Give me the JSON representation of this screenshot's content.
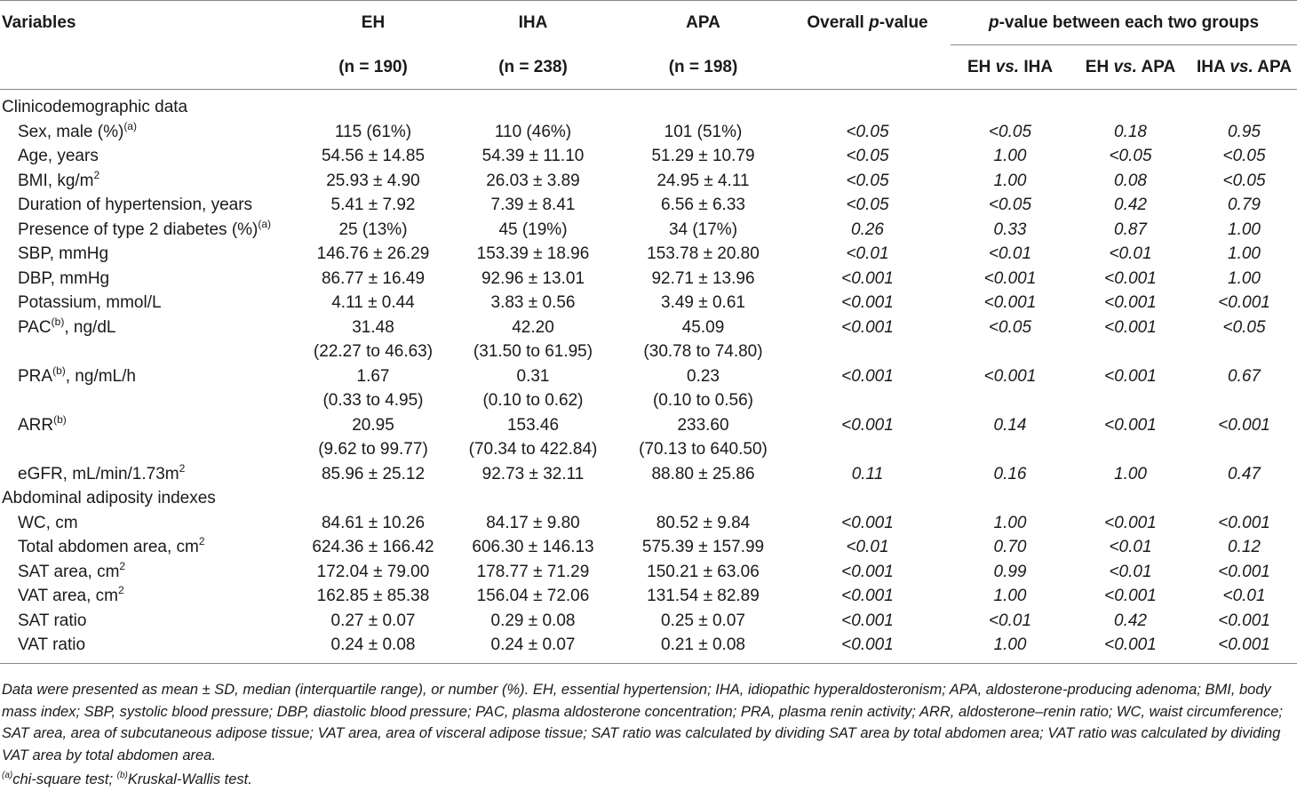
{
  "header": {
    "variables": "Variables",
    "eh": "EH",
    "iha": "IHA",
    "apa": "APA",
    "eh_n": "(n = 190)",
    "iha_n": "(n = 238)",
    "apa_n": "(n = 198)",
    "overall_p_pre": "Overall ",
    "overall_p_italic": "p",
    "overall_p_post": "-value",
    "pairwise_italic": "p",
    "pairwise_post": "-value between each two groups",
    "eh_vs_iha_a": "EH ",
    "vs": "vs.",
    "eh_vs_iha_b": " IHA",
    "eh_vs_apa_a": "EH ",
    "eh_vs_apa_b": " APA",
    "iha_vs_apa_a": "IHA ",
    "iha_vs_apa_b": " APA"
  },
  "sections": {
    "clinical": "Clinicodemographic data",
    "adiposity": "Abdominal adiposity indexes"
  },
  "rows": [
    {
      "label": "Sex, male (%)",
      "sup": "(a)",
      "eh": "115 (61%)",
      "iha": "110 (46%)",
      "apa": "101 (51%)",
      "p": "<0.05",
      "p1": "<0.05",
      "p2": "0.18",
      "p3": "0.95"
    },
    {
      "label": "Age, years",
      "sup": "",
      "eh": "54.56 ± 14.85",
      "iha": "54.39 ± 11.10",
      "apa": "51.29 ± 10.79",
      "p": "<0.05",
      "p1": "1.00",
      "p2": "<0.05",
      "p3": "<0.05"
    },
    {
      "label": "BMI, kg/m",
      "sup": "2",
      "eh": "25.93 ± 4.90",
      "iha": "26.03 ± 3.89",
      "apa": "24.95 ± 4.11",
      "p": "<0.05",
      "p1": "1.00",
      "p2": "0.08",
      "p3": "<0.05"
    },
    {
      "label": "Duration of hypertension, years",
      "sup": "",
      "eh": "5.41 ± 7.92",
      "iha": "7.39 ± 8.41",
      "apa": "6.56 ± 6.33",
      "p": "<0.05",
      "p1": "<0.05",
      "p2": "0.42",
      "p3": "0.79"
    },
    {
      "label": "Presence of type 2 diabetes (%)",
      "sup": "(a)",
      "eh": "25 (13%)",
      "iha": "45 (19%)",
      "apa": "34 (17%)",
      "p": "0.26",
      "p1": "0.33",
      "p2": "0.87",
      "p3": "1.00"
    },
    {
      "label": "SBP, mmHg",
      "sup": "",
      "eh": "146.76 ± 26.29",
      "iha": "153.39 ± 18.96",
      "apa": "153.78 ± 20.80",
      "p": "<0.01",
      "p1": "<0.01",
      "p2": "<0.01",
      "p3": "1.00"
    },
    {
      "label": "DBP, mmHg",
      "sup": "",
      "eh": "86.77 ± 16.49",
      "iha": "92.96 ± 13.01",
      "apa": "92.71 ± 13.96",
      "p": "<0.001",
      "p1": "<0.001",
      "p2": "<0.001",
      "p3": "1.00"
    },
    {
      "label": "Potassium, mmol/L",
      "sup": "",
      "eh": "4.11 ± 0.44",
      "iha": "3.83 ± 0.56",
      "apa": "3.49 ± 0.61",
      "p": "<0.001",
      "p1": "<0.001",
      "p2": "<0.001",
      "p3": "<0.001"
    },
    {
      "label": "PAC",
      "sup": "(b)",
      "post": ", ng/dL",
      "eh": "31.48",
      "iha": "42.20",
      "apa": "45.09",
      "p": "<0.001",
      "p1": "<0.05",
      "p2": "<0.001",
      "p3": "<0.05",
      "eh2": "(22.27 to 46.63)",
      "iha2": "(31.50 to 61.95)",
      "apa2": "(30.78 to 74.80)"
    },
    {
      "label": "PRA",
      "sup": "(b)",
      "post": ", ng/mL/h",
      "eh": "1.67",
      "iha": "0.31",
      "apa": "0.23",
      "p": "<0.001",
      "p1": "<0.001",
      "p2": "<0.001",
      "p3": "0.67",
      "eh2": "(0.33 to 4.95)",
      "iha2": "(0.10 to 0.62)",
      "apa2": "(0.10 to 0.56)"
    },
    {
      "label": "ARR",
      "sup": "(b)",
      "post": "",
      "eh": "20.95",
      "iha": "153.46",
      "apa": "233.60",
      "p": "<0.001",
      "p1": "0.14",
      "p2": "<0.001",
      "p3": "<0.001",
      "eh2": "(9.62 to 99.77)",
      "iha2": "(70.34 to 422.84)",
      "apa2": "(70.13 to 640.50)"
    },
    {
      "label": "eGFR, mL/min/1.73m",
      "sup": "2",
      "eh": "85.96 ± 25.12",
      "iha": "92.73 ± 32.11",
      "apa": "88.80 ± 25.86",
      "p": "0.11",
      "p1": "0.16",
      "p2": "1.00",
      "p3": "0.47"
    },
    {
      "label": "WC, cm",
      "sup": "",
      "eh": "84.61 ± 10.26",
      "iha": "84.17 ± 9.80",
      "apa": "80.52 ± 9.84",
      "p": "<0.001",
      "p1": "1.00",
      "p2": "<0.001",
      "p3": "<0.001"
    },
    {
      "label": "Total abdomen area, cm",
      "sup": "2",
      "eh": "624.36 ± 166.42",
      "iha": "606.30 ± 146.13",
      "apa": "575.39 ± 157.99",
      "p": "<0.01",
      "p1": "0.70",
      "p2": "<0.01",
      "p3": "0.12"
    },
    {
      "label": "SAT area, cm",
      "sup": "2",
      "eh": "172.04 ± 79.00",
      "iha": "178.77 ± 71.29",
      "apa": "150.21 ± 63.06",
      "p": "<0.001",
      "p1": "0.99",
      "p2": "<0.01",
      "p3": "<0.001"
    },
    {
      "label": "VAT area, cm",
      "sup": "2",
      "eh": "162.85 ± 85.38",
      "iha": "156.04 ± 72.06",
      "apa": "131.54 ± 82.89",
      "p": "<0.001",
      "p1": "1.00",
      "p2": "<0.001",
      "p3": "<0.01"
    },
    {
      "label": "SAT ratio",
      "sup": "",
      "eh": "0.27 ± 0.07",
      "iha": "0.29 ± 0.08",
      "apa": "0.25 ± 0.07",
      "p": "<0.001",
      "p1": "<0.01",
      "p2": "0.42",
      "p3": "<0.001"
    },
    {
      "label": "VAT ratio",
      "sup": "",
      "eh": "0.24 ± 0.08",
      "iha": "0.24 ± 0.07",
      "apa": "0.21 ± 0.08",
      "p": "<0.001",
      "p1": "1.00",
      "p2": "<0.001",
      "p3": "<0.001"
    }
  ],
  "notes": {
    "text": "Data were presented as mean ± SD, median (interquartile range), or number (%). EH, essential hypertension; IHA, idiopathic hyperaldosteronism; APA, aldosterone-producing adenoma; BMI, body mass index; SBP, systolic blood pressure; DBP, diastolic blood pressure; PAC, plasma aldosterone concentration; PRA, plasma renin activity; ARR, aldosterone–renin ratio; WC, waist circumference; SAT area, area of subcutaneous adipose tissue; VAT area, area of visceral adipose tissue; SAT ratio was calculated by dividing SAT area by total abdomen area; VAT ratio was calculated by dividing VAT area by total abdomen area.",
    "fn_a_mark": "(a)",
    "fn_a_text": "chi-square test; ",
    "fn_b_mark": "(b)",
    "fn_b_text": "Kruskal-Wallis test."
  }
}
